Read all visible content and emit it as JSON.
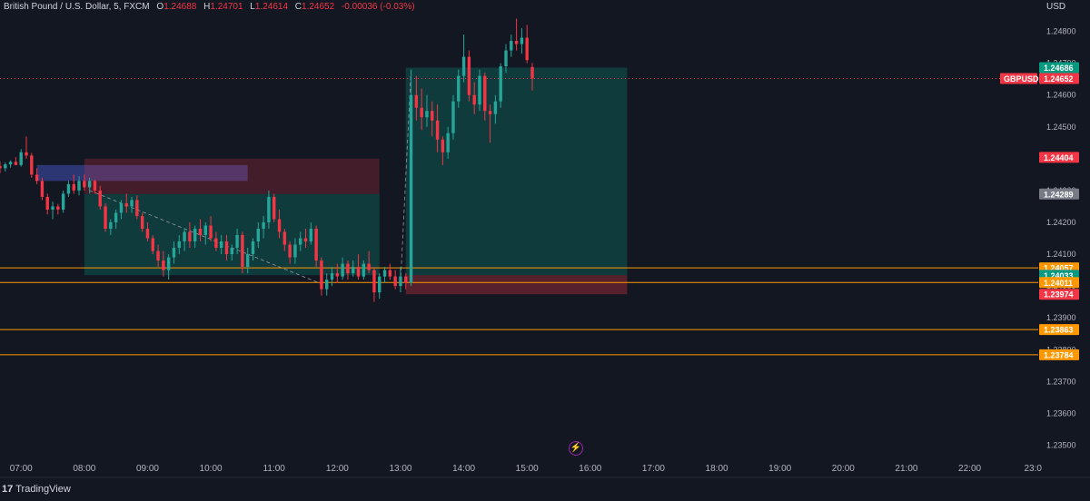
{
  "legend": {
    "symbol_name": "British Pound / U.S. Dollar, 5, FXCM",
    "o_label": "O",
    "o_value": "1.24688",
    "h_label": "H",
    "h_value": "1.24701",
    "l_label": "L",
    "l_value": "1.24614",
    "c_label": "C",
    "c_value": "1.24652",
    "change": "-0.00036 (-0.03%)"
  },
  "currency": "USD",
  "brand": {
    "logo": "17",
    "name": "TradingView"
  },
  "colors": {
    "background": "#131722",
    "up": "#26a69a",
    "down": "#f23645",
    "level_line": "#ff9800",
    "grid": "#1e222d",
    "axis_text": "#b2b5be"
  },
  "chart_data": {
    "type": "candlestick",
    "timeframe": "5",
    "title": "British Pound / U.S. Dollar, 5, FXCM",
    "x_range": [
      "06:40",
      "23:05"
    ],
    "y_range": [
      1.2345,
      1.2487
    ],
    "y_ticks": [
      1.235,
      1.236,
      1.237,
      1.238,
      1.239,
      1.24,
      1.241,
      1.242,
      1.243,
      1.244,
      1.245,
      1.246,
      1.247,
      1.248
    ],
    "y_tick_labels": [
      "1.23500",
      "1.23600",
      "1.23700",
      "1.23800",
      "1.23900",
      "1.24000",
      "1.24100",
      "1.24200",
      "1.24300",
      "1.24400",
      "1.24500",
      "1.24600",
      "1.24700",
      "1.24800"
    ],
    "x_tick_labels": [
      "07:00",
      "08:00",
      "09:00",
      "10:00",
      "11:00",
      "12:00",
      "13:00",
      "14:00",
      "15:00",
      "16:00",
      "17:00",
      "18:00",
      "19:00",
      "20:00",
      "21:00",
      "22:00",
      "23:0"
    ],
    "grid": false,
    "candles": [
      {
        "t": "06:40",
        "o": 1.24377,
        "h": 1.24392,
        "l": 1.24354,
        "c": 1.2437
      },
      {
        "t": "06:45",
        "o": 1.2437,
        "h": 1.24388,
        "l": 1.2436,
        "c": 1.24382
      },
      {
        "t": "06:50",
        "o": 1.24382,
        "h": 1.24395,
        "l": 1.24372,
        "c": 1.2439
      },
      {
        "t": "06:55",
        "o": 1.2439,
        "h": 1.24405,
        "l": 1.2438,
        "c": 1.2438
      },
      {
        "t": "07:00",
        "o": 1.2438,
        "h": 1.2443,
        "l": 1.24375,
        "c": 1.2442
      },
      {
        "t": "07:05",
        "o": 1.2442,
        "h": 1.2447,
        "l": 1.244,
        "c": 1.2441
      },
      {
        "t": "07:10",
        "o": 1.2441,
        "h": 1.24418,
        "l": 1.2434,
        "c": 1.2435
      },
      {
        "t": "07:15",
        "o": 1.2435,
        "h": 1.2437,
        "l": 1.2432,
        "c": 1.2433
      },
      {
        "t": "07:20",
        "o": 1.2433,
        "h": 1.2434,
        "l": 1.2427,
        "c": 1.2428
      },
      {
        "t": "07:25",
        "o": 1.2428,
        "h": 1.2429,
        "l": 1.24225,
        "c": 1.2424
      },
      {
        "t": "07:30",
        "o": 1.2424,
        "h": 1.24265,
        "l": 1.2421,
        "c": 1.2425
      },
      {
        "t": "07:35",
        "o": 1.2425,
        "h": 1.24258,
        "l": 1.24225,
        "c": 1.2424
      },
      {
        "t": "07:40",
        "o": 1.2424,
        "h": 1.243,
        "l": 1.2423,
        "c": 1.2429
      },
      {
        "t": "07:45",
        "o": 1.2429,
        "h": 1.2433,
        "l": 1.2428,
        "c": 1.2432
      },
      {
        "t": "07:50",
        "o": 1.2432,
        "h": 1.2435,
        "l": 1.2429,
        "c": 1.243
      },
      {
        "t": "07:55",
        "o": 1.243,
        "h": 1.24345,
        "l": 1.24285,
        "c": 1.2433
      },
      {
        "t": "08:00",
        "o": 1.2433,
        "h": 1.2435,
        "l": 1.243,
        "c": 1.2431
      },
      {
        "t": "08:05",
        "o": 1.2431,
        "h": 1.2434,
        "l": 1.2429,
        "c": 1.2433
      },
      {
        "t": "08:10",
        "o": 1.2433,
        "h": 1.24335,
        "l": 1.2429,
        "c": 1.243
      },
      {
        "t": "08:15",
        "o": 1.243,
        "h": 1.24315,
        "l": 1.2424,
        "c": 1.2425
      },
      {
        "t": "08:20",
        "o": 1.2425,
        "h": 1.2426,
        "l": 1.2417,
        "c": 1.2418
      },
      {
        "t": "08:25",
        "o": 1.2418,
        "h": 1.2421,
        "l": 1.2416,
        "c": 1.242
      },
      {
        "t": "08:30",
        "o": 1.242,
        "h": 1.2424,
        "l": 1.2418,
        "c": 1.2423
      },
      {
        "t": "08:35",
        "o": 1.2423,
        "h": 1.2427,
        "l": 1.2421,
        "c": 1.2426
      },
      {
        "t": "08:40",
        "o": 1.2426,
        "h": 1.2429,
        "l": 1.2423,
        "c": 1.2425
      },
      {
        "t": "08:45",
        "o": 1.2425,
        "h": 1.2428,
        "l": 1.2423,
        "c": 1.2427
      },
      {
        "t": "08:50",
        "o": 1.2427,
        "h": 1.24285,
        "l": 1.2421,
        "c": 1.2422
      },
      {
        "t": "08:55",
        "o": 1.2422,
        "h": 1.2423,
        "l": 1.2417,
        "c": 1.2418
      },
      {
        "t": "09:00",
        "o": 1.2418,
        "h": 1.242,
        "l": 1.2414,
        "c": 1.2415
      },
      {
        "t": "09:05",
        "o": 1.2415,
        "h": 1.2416,
        "l": 1.241,
        "c": 1.2411
      },
      {
        "t": "09:10",
        "o": 1.2411,
        "h": 1.2413,
        "l": 1.2406,
        "c": 1.2408
      },
      {
        "t": "09:15",
        "o": 1.2408,
        "h": 1.2411,
        "l": 1.2403,
        "c": 1.2405
      },
      {
        "t": "09:20",
        "o": 1.2405,
        "h": 1.241,
        "l": 1.2402,
        "c": 1.2409
      },
      {
        "t": "09:25",
        "o": 1.2409,
        "h": 1.2414,
        "l": 1.2407,
        "c": 1.2412
      },
      {
        "t": "09:30",
        "o": 1.2412,
        "h": 1.2416,
        "l": 1.241,
        "c": 1.2414
      },
      {
        "t": "09:35",
        "o": 1.2414,
        "h": 1.2418,
        "l": 1.2411,
        "c": 1.2417
      },
      {
        "t": "09:40",
        "o": 1.2417,
        "h": 1.242,
        "l": 1.2412,
        "c": 1.2414
      },
      {
        "t": "09:45",
        "o": 1.2414,
        "h": 1.2419,
        "l": 1.2412,
        "c": 1.2418
      },
      {
        "t": "09:50",
        "o": 1.2418,
        "h": 1.2421,
        "l": 1.2414,
        "c": 1.2416
      },
      {
        "t": "09:55",
        "o": 1.2416,
        "h": 1.242,
        "l": 1.2413,
        "c": 1.2419
      },
      {
        "t": "10:00",
        "o": 1.2419,
        "h": 1.2422,
        "l": 1.2414,
        "c": 1.2415
      },
      {
        "t": "10:05",
        "o": 1.2415,
        "h": 1.2417,
        "l": 1.2411,
        "c": 1.2412
      },
      {
        "t": "10:10",
        "o": 1.2412,
        "h": 1.2416,
        "l": 1.241,
        "c": 1.2414
      },
      {
        "t": "10:15",
        "o": 1.2414,
        "h": 1.2416,
        "l": 1.2408,
        "c": 1.241
      },
      {
        "t": "10:20",
        "o": 1.241,
        "h": 1.2413,
        "l": 1.2408,
        "c": 1.2412
      },
      {
        "t": "10:25",
        "o": 1.2412,
        "h": 1.2418,
        "l": 1.241,
        "c": 1.2416
      },
      {
        "t": "10:30",
        "o": 1.2416,
        "h": 1.2417,
        "l": 1.2404,
        "c": 1.2406
      },
      {
        "t": "10:35",
        "o": 1.2406,
        "h": 1.2412,
        "l": 1.2404,
        "c": 1.241
      },
      {
        "t": "10:40",
        "o": 1.241,
        "h": 1.2415,
        "l": 1.2408,
        "c": 1.2414
      },
      {
        "t": "10:45",
        "o": 1.2414,
        "h": 1.242,
        "l": 1.2412,
        "c": 1.2418
      },
      {
        "t": "10:50",
        "o": 1.2418,
        "h": 1.2422,
        "l": 1.2415,
        "c": 1.242
      },
      {
        "t": "10:55",
        "o": 1.242,
        "h": 1.243,
        "l": 1.2418,
        "c": 1.2428
      },
      {
        "t": "11:00",
        "o": 1.2428,
        "h": 1.2429,
        "l": 1.242,
        "c": 1.2421
      },
      {
        "t": "11:05",
        "o": 1.2421,
        "h": 1.2424,
        "l": 1.2415,
        "c": 1.2417
      },
      {
        "t": "11:10",
        "o": 1.2417,
        "h": 1.2418,
        "l": 1.2411,
        "c": 1.2413
      },
      {
        "t": "11:15",
        "o": 1.2413,
        "h": 1.2414,
        "l": 1.2407,
        "c": 1.2409
      },
      {
        "t": "11:20",
        "o": 1.2409,
        "h": 1.2415,
        "l": 1.2407,
        "c": 1.2413
      },
      {
        "t": "11:25",
        "o": 1.2413,
        "h": 1.2417,
        "l": 1.2411,
        "c": 1.2415
      },
      {
        "t": "11:30",
        "o": 1.2415,
        "h": 1.2418,
        "l": 1.2412,
        "c": 1.2414
      },
      {
        "t": "11:35",
        "o": 1.2414,
        "h": 1.242,
        "l": 1.2413,
        "c": 1.2418
      },
      {
        "t": "11:40",
        "o": 1.2418,
        "h": 1.2419,
        "l": 1.2406,
        "c": 1.2408
      },
      {
        "t": "11:45",
        "o": 1.2408,
        "h": 1.2409,
        "l": 1.2397,
        "c": 1.2399
      },
      {
        "t": "11:50",
        "o": 1.2399,
        "h": 1.2404,
        "l": 1.2397,
        "c": 1.2402
      },
      {
        "t": "11:55",
        "o": 1.2402,
        "h": 1.2406,
        "l": 1.24,
        "c": 1.2404
      },
      {
        "t": "12:00",
        "o": 1.2404,
        "h": 1.2407,
        "l": 1.2401,
        "c": 1.2403
      },
      {
        "t": "12:05",
        "o": 1.2403,
        "h": 1.2409,
        "l": 1.2402,
        "c": 1.2407
      },
      {
        "t": "12:10",
        "o": 1.2407,
        "h": 1.2408,
        "l": 1.2402,
        "c": 1.2404
      },
      {
        "t": "12:15",
        "o": 1.2404,
        "h": 1.2408,
        "l": 1.2403,
        "c": 1.2406
      },
      {
        "t": "12:20",
        "o": 1.2406,
        "h": 1.241,
        "l": 1.2402,
        "c": 1.2403
      },
      {
        "t": "12:25",
        "o": 1.2403,
        "h": 1.2408,
        "l": 1.2402,
        "c": 1.2407
      },
      {
        "t": "12:30",
        "o": 1.2407,
        "h": 1.2411,
        "l": 1.2404,
        "c": 1.2405
      },
      {
        "t": "12:35",
        "o": 1.2405,
        "h": 1.2406,
        "l": 1.2395,
        "c": 1.2398
      },
      {
        "t": "12:40",
        "o": 1.2398,
        "h": 1.2404,
        "l": 1.2396,
        "c": 1.2403
      },
      {
        "t": "12:45",
        "o": 1.2403,
        "h": 1.2406,
        "l": 1.2401,
        "c": 1.2405
      },
      {
        "t": "12:50",
        "o": 1.2405,
        "h": 1.2407,
        "l": 1.2402,
        "c": 1.2403
      },
      {
        "t": "12:55",
        "o": 1.2403,
        "h": 1.2405,
        "l": 1.2399,
        "c": 1.24
      },
      {
        "t": "13:00",
        "o": 1.24,
        "h": 1.2406,
        "l": 1.2398,
        "c": 1.2403
      },
      {
        "t": "13:05",
        "o": 1.2403,
        "h": 1.2404,
        "l": 1.2399,
        "c": 1.2401
      },
      {
        "t": "13:10",
        "o": 1.2401,
        "h": 1.2468,
        "l": 1.24,
        "c": 1.246
      },
      {
        "t": "13:15",
        "o": 1.246,
        "h": 1.2466,
        "l": 1.2452,
        "c": 1.2456
      },
      {
        "t": "13:20",
        "o": 1.2456,
        "h": 1.2462,
        "l": 1.2449,
        "c": 1.2453
      },
      {
        "t": "13:25",
        "o": 1.2453,
        "h": 1.246,
        "l": 1.245,
        "c": 1.2455
      },
      {
        "t": "13:30",
        "o": 1.2455,
        "h": 1.2458,
        "l": 1.2447,
        "c": 1.2452
      },
      {
        "t": "13:35",
        "o": 1.2452,
        "h": 1.2457,
        "l": 1.2442,
        "c": 1.2446
      },
      {
        "t": "13:40",
        "o": 1.2446,
        "h": 1.2447,
        "l": 1.2438,
        "c": 1.2442
      },
      {
        "t": "13:45",
        "o": 1.2442,
        "h": 1.245,
        "l": 1.244,
        "c": 1.2448
      },
      {
        "t": "13:50",
        "o": 1.2448,
        "h": 1.246,
        "l": 1.2446,
        "c": 1.2458
      },
      {
        "t": "13:55",
        "o": 1.2458,
        "h": 1.2468,
        "l": 1.2456,
        "c": 1.2466
      },
      {
        "t": "14:00",
        "o": 1.2466,
        "h": 1.2479,
        "l": 1.2464,
        "c": 1.2472
      },
      {
        "t": "14:05",
        "o": 1.2472,
        "h": 1.2474,
        "l": 1.2458,
        "c": 1.246
      },
      {
        "t": "14:10",
        "o": 1.246,
        "h": 1.2464,
        "l": 1.2454,
        "c": 1.2457
      },
      {
        "t": "14:15",
        "o": 1.2457,
        "h": 1.2468,
        "l": 1.2455,
        "c": 1.2466
      },
      {
        "t": "14:20",
        "o": 1.2466,
        "h": 1.2467,
        "l": 1.2452,
        "c": 1.2455
      },
      {
        "t": "14:25",
        "o": 1.2455,
        "h": 1.2457,
        "l": 1.2445,
        "c": 1.2454
      },
      {
        "t": "14:30",
        "o": 1.2454,
        "h": 1.246,
        "l": 1.2451,
        "c": 1.2458
      },
      {
        "t": "14:35",
        "o": 1.2458,
        "h": 1.247,
        "l": 1.2456,
        "c": 1.2469
      },
      {
        "t": "14:40",
        "o": 1.2469,
        "h": 1.2476,
        "l": 1.2467,
        "c": 1.2474
      },
      {
        "t": "14:45",
        "o": 1.2474,
        "h": 1.2479,
        "l": 1.2472,
        "c": 1.2477
      },
      {
        "t": "14:50",
        "o": 1.2477,
        "h": 1.2484,
        "l": 1.2474,
        "c": 1.2476
      },
      {
        "t": "14:55",
        "o": 1.2476,
        "h": 1.2481,
        "l": 1.2473,
        "c": 1.2478
      },
      {
        "t": "15:00",
        "o": 1.2478,
        "h": 1.2482,
        "l": 1.247,
        "c": 1.2471
      },
      {
        "t": "15:05",
        "o": 1.24688,
        "h": 1.24701,
        "l": 1.24614,
        "c": 1.24652
      }
    ],
    "horizontal_levels": [
      1.24057,
      1.24011,
      1.23863,
      1.23784
    ],
    "zones": [
      {
        "kind": "supply",
        "from": "07:15",
        "to": "10:35",
        "top": 1.2438,
        "bottom": 1.2433
      },
      {
        "kind": "sell-stop",
        "from": "08:00",
        "to": "12:40",
        "top": 1.244,
        "bottom": 1.24289
      },
      {
        "kind": "sell-profit",
        "from": "08:00",
        "to": "12:40",
        "top": 1.24289,
        "bottom": 1.24034
      },
      {
        "kind": "buy-profit",
        "from": "13:05",
        "to": "16:35",
        "top": 1.24686,
        "bottom": 1.24034
      },
      {
        "kind": "buy-stop",
        "from": "13:05",
        "to": "16:35",
        "top": 1.24034,
        "bottom": 1.23974
      }
    ],
    "price_labels": [
      {
        "value": "1.24686",
        "color": "#089981"
      },
      {
        "value": "1.24652",
        "color": "#f23645",
        "tag": "GBPUSD"
      },
      {
        "value": "1.24404",
        "color": "#f23645"
      },
      {
        "value": "1.24289",
        "color": "#787b86"
      },
      {
        "value": "1.24057",
        "color": "#ff9800"
      },
      {
        "value": "1.24034",
        "color": "#787b86"
      },
      {
        "value": "1.24033",
        "color": "#089981"
      },
      {
        "value": "1.24011",
        "color": "#ff9800"
      },
      {
        "value": "1.23974",
        "color": "#f23645"
      },
      {
        "value": "1.23863",
        "color": "#ff9800"
      },
      {
        "value": "1.23784",
        "color": "#ff9800"
      }
    ]
  }
}
